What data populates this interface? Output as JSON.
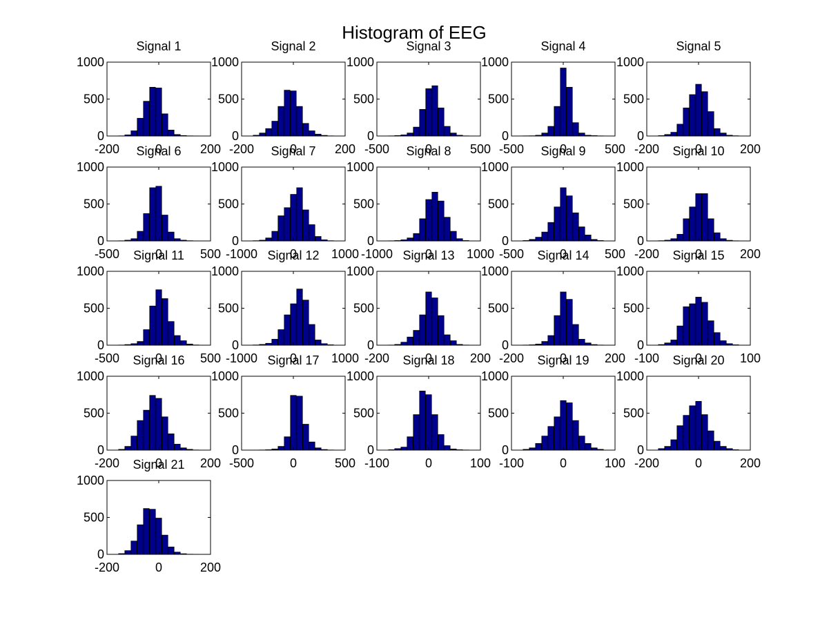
{
  "figure": {
    "title": "Histogram of EEG"
  },
  "colors": {
    "bar_fill": "#00008f",
    "bar_edge": "#000000",
    "axes": "#000000",
    "background": "#ffffff"
  },
  "chart_data": [
    {
      "type": "bar",
      "title": "Signal 1",
      "xlim": [
        -200,
        200
      ],
      "ylim": [
        0,
        1000
      ],
      "xticks": [
        "-200",
        "0",
        "200"
      ],
      "yticks": [
        "0",
        "500",
        "1000"
      ],
      "x": [
        -144,
        -120,
        -96,
        -72,
        -48,
        -24,
        0,
        24,
        48,
        72,
        96,
        120,
        144
      ],
      "values": [
        2,
        15,
        70,
        240,
        470,
        660,
        650,
        300,
        80,
        20,
        6,
        2,
        1
      ]
    },
    {
      "type": "bar",
      "title": "Signal 2",
      "xlim": [
        -200,
        200
      ],
      "ylim": [
        0,
        1000
      ],
      "xticks": [
        "-200",
        "0",
        "200"
      ],
      "yticks": [
        "0",
        "500",
        "1000"
      ],
      "x": [
        -144,
        -120,
        -96,
        -72,
        -48,
        -24,
        0,
        24,
        48,
        72,
        96,
        120,
        144
      ],
      "values": [
        10,
        40,
        100,
        200,
        400,
        620,
        610,
        400,
        170,
        70,
        25,
        8,
        2
      ]
    },
    {
      "type": "bar",
      "title": "Signal 3",
      "xlim": [
        -500,
        500
      ],
      "ylim": [
        0,
        1000
      ],
      "xticks": [
        "-500",
        "0",
        "500"
      ],
      "yticks": [
        "0",
        "500",
        "1000"
      ],
      "x": [
        -360,
        -300,
        -240,
        -180,
        -120,
        -60,
        0,
        60,
        120,
        180,
        240,
        300,
        360
      ],
      "values": [
        2,
        6,
        15,
        40,
        120,
        360,
        640,
        680,
        380,
        130,
        40,
        10,
        2
      ]
    },
    {
      "type": "bar",
      "title": "Signal 4",
      "xlim": [
        -500,
        500
      ],
      "ylim": [
        0,
        1000
      ],
      "xticks": [
        "-500",
        "0",
        "500"
      ],
      "yticks": [
        "0",
        "500",
        "1000"
      ],
      "x": [
        -360,
        -300,
        -240,
        -180,
        -120,
        -60,
        0,
        60,
        120,
        180,
        240,
        300,
        360
      ],
      "values": [
        2,
        3,
        10,
        40,
        130,
        400,
        920,
        660,
        180,
        40,
        10,
        5,
        2
      ]
    },
    {
      "type": "bar",
      "title": "Signal 5",
      "xlim": [
        -200,
        200
      ],
      "ylim": [
        0,
        1000
      ],
      "xticks": [
        "-200",
        "0",
        "200"
      ],
      "yticks": [
        "0",
        "500",
        "1000"
      ],
      "x": [
        -144,
        -120,
        -96,
        -72,
        -48,
        -24,
        0,
        24,
        48,
        72,
        96,
        120,
        144
      ],
      "values": [
        5,
        20,
        50,
        160,
        380,
        560,
        700,
        600,
        330,
        100,
        40,
        10,
        3
      ]
    },
    {
      "type": "bar",
      "title": "Signal 6",
      "xlim": [
        -500,
        500
      ],
      "ylim": [
        0,
        1000
      ],
      "xticks": [
        "-500",
        "0",
        "500"
      ],
      "yticks": [
        "0",
        "500",
        "1000"
      ],
      "x": [
        -360,
        -300,
        -240,
        -180,
        -120,
        -60,
        0,
        60,
        120,
        180,
        240,
        300,
        360
      ],
      "values": [
        2,
        10,
        30,
        130,
        370,
        720,
        740,
        350,
        120,
        30,
        10,
        3,
        1
      ]
    },
    {
      "type": "bar",
      "title": "Signal 7",
      "xlim": [
        -1000,
        1000
      ],
      "ylim": [
        0,
        1000
      ],
      "xticks": [
        "-1000",
        "0",
        "1000"
      ],
      "yticks": [
        "0",
        "500",
        "1000"
      ],
      "x": [
        -720,
        -600,
        -480,
        -360,
        -240,
        -120,
        0,
        120,
        240,
        360,
        480,
        600,
        720
      ],
      "values": [
        3,
        10,
        40,
        130,
        340,
        450,
        630,
        720,
        420,
        220,
        60,
        15,
        3
      ]
    },
    {
      "type": "bar",
      "title": "Signal 8",
      "xlim": [
        -1000,
        1000
      ],
      "ylim": [
        0,
        1000
      ],
      "xticks": [
        "-1000",
        "0",
        "1000"
      ],
      "yticks": [
        "0",
        "500",
        "1000"
      ],
      "x": [
        -720,
        -600,
        -480,
        -360,
        -240,
        -120,
        0,
        120,
        240,
        360,
        480,
        600,
        720
      ],
      "values": [
        2,
        5,
        15,
        40,
        100,
        300,
        560,
        660,
        540,
        320,
        130,
        30,
        5
      ]
    },
    {
      "type": "bar",
      "title": "Signal 9",
      "xlim": [
        -500,
        500
      ],
      "ylim": [
        0,
        1000
      ],
      "xticks": [
        "-500",
        "0",
        "500"
      ],
      "yticks": [
        "0",
        "500",
        "1000"
      ],
      "x": [
        -360,
        -300,
        -240,
        -180,
        -120,
        -60,
        0,
        60,
        120,
        180,
        240,
        300,
        360
      ],
      "values": [
        5,
        20,
        50,
        120,
        250,
        460,
        720,
        610,
        380,
        190,
        80,
        20,
        5
      ]
    },
    {
      "type": "bar",
      "title": "Signal 10",
      "xlim": [
        -200,
        200
      ],
      "ylim": [
        0,
        1000
      ],
      "xticks": [
        "-200",
        "0",
        "200"
      ],
      "yticks": [
        "0",
        "500",
        "1000"
      ],
      "x": [
        -144,
        -120,
        -96,
        -72,
        -48,
        -24,
        0,
        24,
        48,
        72,
        96,
        120,
        144
      ],
      "values": [
        3,
        10,
        30,
        90,
        300,
        460,
        640,
        640,
        300,
        110,
        30,
        8,
        2
      ]
    },
    {
      "type": "bar",
      "title": "Signal 11",
      "xlim": [
        -500,
        500
      ],
      "ylim": [
        0,
        1000
      ],
      "xticks": [
        "-500",
        "0",
        "500"
      ],
      "yticks": [
        "0",
        "500",
        "1000"
      ],
      "x": [
        -360,
        -300,
        -240,
        -180,
        -120,
        -60,
        0,
        60,
        120,
        180,
        240,
        300,
        360
      ],
      "values": [
        2,
        8,
        20,
        50,
        210,
        530,
        750,
        630,
        320,
        130,
        60,
        15,
        3
      ]
    },
    {
      "type": "bar",
      "title": "Signal 12",
      "xlim": [
        -1000,
        1000
      ],
      "ylim": [
        0,
        1000
      ],
      "xticks": [
        "-1000",
        "0",
        "1000"
      ],
      "yticks": [
        "0",
        "500",
        "1000"
      ],
      "x": [
        -720,
        -600,
        -480,
        -360,
        -240,
        -120,
        0,
        120,
        240,
        360,
        480,
        600,
        720
      ],
      "values": [
        3,
        10,
        25,
        80,
        210,
        410,
        560,
        760,
        610,
        280,
        70,
        20,
        5
      ]
    },
    {
      "type": "bar",
      "title": "Signal 13",
      "xlim": [
        -200,
        200
      ],
      "ylim": [
        0,
        1000
      ],
      "xticks": [
        "-200",
        "0",
        "200"
      ],
      "yticks": [
        "0",
        "500",
        "1000"
      ],
      "x": [
        -144,
        -120,
        -96,
        -72,
        -48,
        -24,
        0,
        24,
        48,
        72,
        96,
        120,
        144
      ],
      "values": [
        2,
        10,
        40,
        110,
        200,
        410,
        720,
        640,
        400,
        140,
        60,
        10,
        2
      ]
    },
    {
      "type": "bar",
      "title": "Signal 14",
      "xlim": [
        -200,
        200
      ],
      "ylim": [
        0,
        1000
      ],
      "xticks": [
        "-200",
        "0",
        "200"
      ],
      "yticks": [
        "0",
        "500",
        "1000"
      ],
      "x": [
        -144,
        -120,
        -96,
        -72,
        -48,
        -24,
        0,
        24,
        48,
        72,
        96,
        120,
        144
      ],
      "values": [
        2,
        5,
        15,
        50,
        130,
        400,
        720,
        620,
        280,
        80,
        30,
        8,
        2
      ]
    },
    {
      "type": "bar",
      "title": "Signal 15",
      "xlim": [
        -100,
        100
      ],
      "ylim": [
        0,
        1000
      ],
      "xticks": [
        "-100",
        "0",
        "100"
      ],
      "yticks": [
        "0",
        "500",
        "1000"
      ],
      "x": [
        -72,
        -60,
        -48,
        -36,
        -24,
        -12,
        0,
        12,
        24,
        36,
        48,
        60,
        72
      ],
      "values": [
        8,
        30,
        70,
        260,
        520,
        560,
        650,
        580,
        330,
        170,
        60,
        20,
        5
      ]
    },
    {
      "type": "bar",
      "title": "Signal 16",
      "xlim": [
        -200,
        200
      ],
      "ylim": [
        0,
        1000
      ],
      "xticks": [
        "-200",
        "0",
        "200"
      ],
      "yticks": [
        "0",
        "500",
        "1000"
      ],
      "x": [
        -144,
        -120,
        -96,
        -72,
        -48,
        -24,
        0,
        24,
        48,
        72,
        96,
        120,
        144
      ],
      "values": [
        10,
        50,
        190,
        400,
        540,
        740,
        700,
        450,
        220,
        80,
        30,
        10,
        2
      ]
    },
    {
      "type": "bar",
      "title": "Signal 17",
      "xlim": [
        -500,
        500
      ],
      "ylim": [
        0,
        1000
      ],
      "xticks": [
        "-500",
        "0",
        "500"
      ],
      "yticks": [
        "0",
        "500",
        "1000"
      ],
      "x": [
        -360,
        -300,
        -240,
        -180,
        -120,
        -60,
        0,
        60,
        120,
        180,
        240,
        300,
        360
      ],
      "values": [
        1,
        2,
        5,
        15,
        50,
        180,
        740,
        730,
        350,
        110,
        30,
        8,
        2
      ]
    },
    {
      "type": "bar",
      "title": "Signal 18",
      "xlim": [
        -100,
        100
      ],
      "ylim": [
        0,
        1000
      ],
      "xticks": [
        "-100",
        "0",
        "100"
      ],
      "yticks": [
        "0",
        "500",
        "1000"
      ],
      "x": [
        -72,
        -60,
        -48,
        -36,
        -24,
        -12,
        0,
        12,
        24,
        36,
        48,
        60,
        72
      ],
      "values": [
        5,
        20,
        40,
        180,
        480,
        800,
        750,
        480,
        210,
        60,
        15,
        5,
        2
      ]
    },
    {
      "type": "bar",
      "title": "Signal 19",
      "xlim": [
        -100,
        100
      ],
      "ylim": [
        0,
        1000
      ],
      "xticks": [
        "-100",
        "0",
        "100"
      ],
      "yticks": [
        "0",
        "500",
        "1000"
      ],
      "x": [
        -72,
        -60,
        -48,
        -36,
        -24,
        -12,
        0,
        12,
        24,
        36,
        48,
        60,
        72
      ],
      "values": [
        10,
        30,
        90,
        190,
        320,
        450,
        670,
        640,
        400,
        190,
        90,
        30,
        10
      ]
    },
    {
      "type": "bar",
      "title": "Signal 20",
      "xlim": [
        -200,
        200
      ],
      "ylim": [
        0,
        1000
      ],
      "xticks": [
        "-200",
        "0",
        "200"
      ],
      "yticks": [
        "0",
        "500",
        "1000"
      ],
      "x": [
        -144,
        -120,
        -96,
        -72,
        -48,
        -24,
        0,
        24,
        48,
        72,
        96,
        120,
        144
      ],
      "values": [
        20,
        50,
        140,
        330,
        470,
        600,
        660,
        480,
        260,
        120,
        50,
        20,
        5
      ]
    },
    {
      "type": "bar",
      "title": "Signal 21",
      "xlim": [
        -200,
        200
      ],
      "ylim": [
        0,
        1000
      ],
      "xticks": [
        "-200",
        "0",
        "200"
      ],
      "yticks": [
        "0",
        "500",
        "1000"
      ],
      "x": [
        -144,
        -120,
        -96,
        -72,
        -48,
        -24,
        0,
        24,
        48,
        72,
        96,
        120,
        144
      ],
      "values": [
        10,
        50,
        180,
        400,
        620,
        610,
        490,
        260,
        100,
        30,
        8,
        2,
        1
      ]
    }
  ]
}
